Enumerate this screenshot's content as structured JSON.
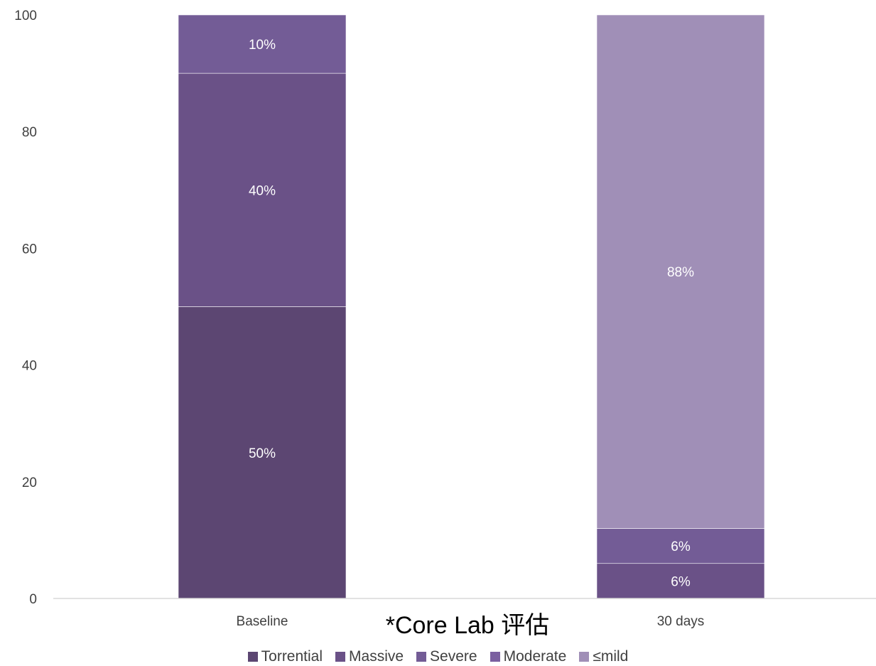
{
  "chart_data": {
    "type": "bar",
    "stacked": true,
    "categories": [
      "Baseline",
      "30 days"
    ],
    "series": [
      {
        "name": "Torrential",
        "color": "#5c4672",
        "values": [
          50,
          0
        ],
        "labels": [
          "50%",
          ""
        ]
      },
      {
        "name": "Massive",
        "color": "#6a5187",
        "values": [
          40,
          6
        ],
        "labels": [
          "40%",
          "6%"
        ]
      },
      {
        "name": "Severe",
        "color": "#735c96",
        "values": [
          10,
          6
        ],
        "labels": [
          "10%",
          "6%"
        ]
      },
      {
        "name": "Moderate",
        "color": "#7b60a0",
        "values": [
          0,
          0
        ],
        "labels": [
          "",
          ""
        ]
      },
      {
        "name": "≤mild",
        "color": "#a08fb7",
        "values": [
          0,
          88
        ],
        "labels": [
          "",
          "88%"
        ]
      }
    ],
    "ylim": [
      0,
      100
    ],
    "yticks": [
      0,
      20,
      40,
      60,
      80,
      100
    ],
    "grid": false,
    "legend": "bottom",
    "annotation": "*Core Lab 评估"
  }
}
